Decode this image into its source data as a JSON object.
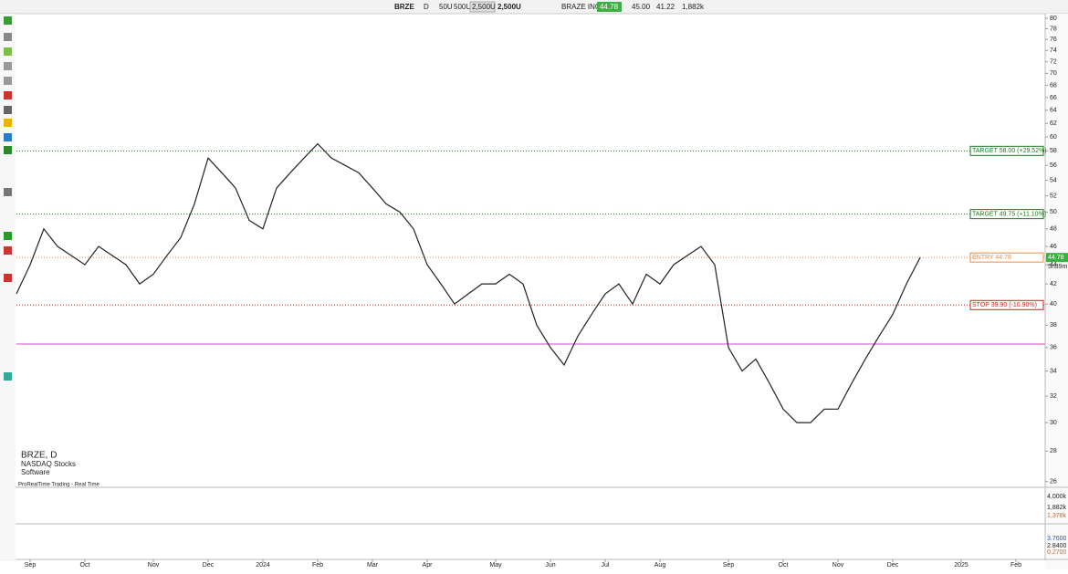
{
  "toolbar": {
    "symbol": "BRZE",
    "period": "D",
    "sizes": [
      "50U",
      "500U",
      "2,500U"
    ],
    "order_size": "2,500U",
    "name": "BRAZE INC.",
    "last": "44.78",
    "high": "45.00",
    "low": "41.22",
    "volume": "1,882k"
  },
  "info": {
    "title": "BRZE, D",
    "exchange": "NASDAQ Stocks",
    "sector": "Software",
    "feed": "ProRealTime Trading - Real Time"
  },
  "price_tag": {
    "price": "44.78",
    "timer": "5h39m"
  },
  "volume_panel": {
    "labels": [
      "4,000k",
      "1,882k",
      "1,378k"
    ]
  },
  "indicator_panel": {
    "labels": [
      "3.7600",
      "2.8400",
      "0.2700"
    ]
  },
  "chart_data": {
    "type": "line",
    "log_scale": true,
    "color": "#222",
    "categories": [
      null,
      "Sep",
      null,
      null,
      null,
      "Oct",
      null,
      null,
      null,
      null,
      "Nov",
      null,
      null,
      null,
      "Dec",
      null,
      null,
      null,
      "2024",
      null,
      null,
      null,
      "Feb",
      null,
      null,
      null,
      "Mar",
      null,
      null,
      null,
      "Apr",
      null,
      null,
      null,
      null,
      "May",
      null,
      null,
      null,
      "Jun",
      null,
      null,
      null,
      "Jul",
      null,
      null,
      null,
      "Aug",
      null,
      null,
      null,
      null,
      "Sep",
      null,
      null,
      null,
      "Oct",
      null,
      null,
      null,
      "Nov",
      null,
      null,
      null,
      "Dec",
      null,
      null,
      null,
      null,
      "2025",
      null,
      null,
      null,
      "Feb",
      null,
      null
    ],
    "values": [
      41,
      44,
      48,
      46,
      45,
      44,
      46,
      45,
      44,
      42,
      43,
      45,
      47,
      51,
      57,
      55,
      53,
      49,
      48,
      53,
      55,
      57,
      59,
      57,
      56,
      55,
      53,
      51,
      50,
      48,
      44,
      42,
      40,
      41,
      42,
      42,
      43,
      42,
      38,
      36,
      34.5,
      37,
      39,
      41,
      42,
      40,
      43,
      42,
      44,
      45,
      46,
      44,
      36,
      34,
      35,
      33,
      31,
      30,
      30,
      31,
      31,
      33,
      35,
      37,
      39,
      42,
      44.78,
      null,
      null,
      null,
      null,
      null,
      null,
      null,
      null,
      null
    ],
    "ylim": [
      25.7,
      80.9
    ],
    "yticks": [
      26,
      28,
      30,
      32,
      34,
      36,
      38,
      40,
      42,
      44,
      46,
      48,
      50,
      52,
      54,
      56,
      58,
      60,
      62,
      64,
      66,
      68,
      70,
      72,
      74,
      76,
      78,
      80
    ],
    "levels": [
      {
        "label": "TARGET 58.00 (+29.52%)",
        "value": 58,
        "color": "#1a7a1a"
      },
      {
        "label": "TARGET 49.75 (+11.10%)",
        "value": 49.75,
        "color": "#1a7a1a"
      },
      {
        "label": "ENTRY 44.78",
        "value": 44.78,
        "color": "#f08a3c"
      },
      {
        "label": "STOP 39.90 (-10.90%)",
        "value": 39.9,
        "color": "#d21f1f"
      }
    ],
    "support": 36.3
  }
}
